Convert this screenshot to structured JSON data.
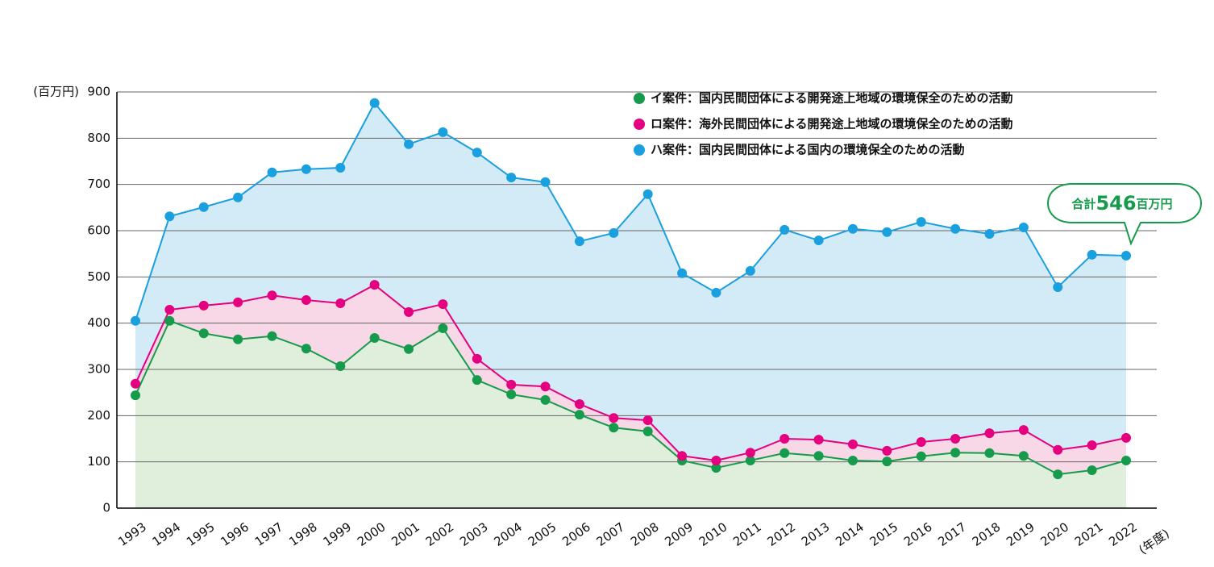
{
  "chart_data": {
    "type": "stacked-area-line",
    "y_label": "(百万円)",
    "x_label": "(年度)",
    "categories": [
      "1993",
      "1994",
      "1995",
      "1996",
      "1997",
      "1998",
      "1999",
      "2000",
      "2001",
      "2002",
      "2003",
      "2004",
      "2005",
      "2006",
      "2007",
      "2008",
      "2009",
      "2010",
      "2011",
      "2012",
      "2013",
      "2014",
      "2015",
      "2016",
      "2017",
      "2018",
      "2019",
      "2020",
      "2021",
      "2022"
    ],
    "series": [
      {
        "name": "イ案件：国内民間団体による開発途上地域の環境保全のための活動",
        "color": "#169b4c",
        "fill": "#e0eedc",
        "values": [
          244,
          405,
          378,
          365,
          372,
          345,
          307,
          368,
          344,
          389,
          277,
          246,
          234,
          202,
          174,
          166,
          103,
          87,
          103,
          119,
          113,
          103,
          101,
          112,
          120,
          119,
          113,
          73,
          82,
          103
        ]
      },
      {
        "name": "ロ案件：海外民間団体による開発途上地域の環境保全のための活動",
        "color": "#e4007f",
        "fill": "#f8d8e6",
        "values": [
          25,
          24,
          60,
          80,
          88,
          105,
          136,
          115,
          80,
          52,
          46,
          21,
          29,
          23,
          21,
          24,
          10,
          16,
          17,
          31,
          35,
          35,
          23,
          31,
          30,
          43,
          56,
          53,
          54,
          49
        ]
      },
      {
        "name": "ハ案件：国内民間団体による国内の環境保全のための活動",
        "color": "#1a9fdf",
        "fill": "#d3eaf7",
        "values": [
          136,
          202,
          213,
          227,
          266,
          283,
          293,
          393,
          363,
          372,
          446,
          448,
          442,
          352,
          400,
          489,
          395,
          363,
          393,
          452,
          431,
          466,
          473,
          476,
          454,
          431,
          438,
          352,
          412,
          394
        ]
      }
    ],
    "annotation": {
      "prefix": "合計",
      "value": 546,
      "suffix": "百万円"
    },
    "ylim": [
      0,
      900
    ],
    "yticks": [
      0,
      100,
      200,
      300,
      400,
      500,
      600,
      700,
      800,
      900
    ],
    "grid": true,
    "legend": "top-right"
  }
}
